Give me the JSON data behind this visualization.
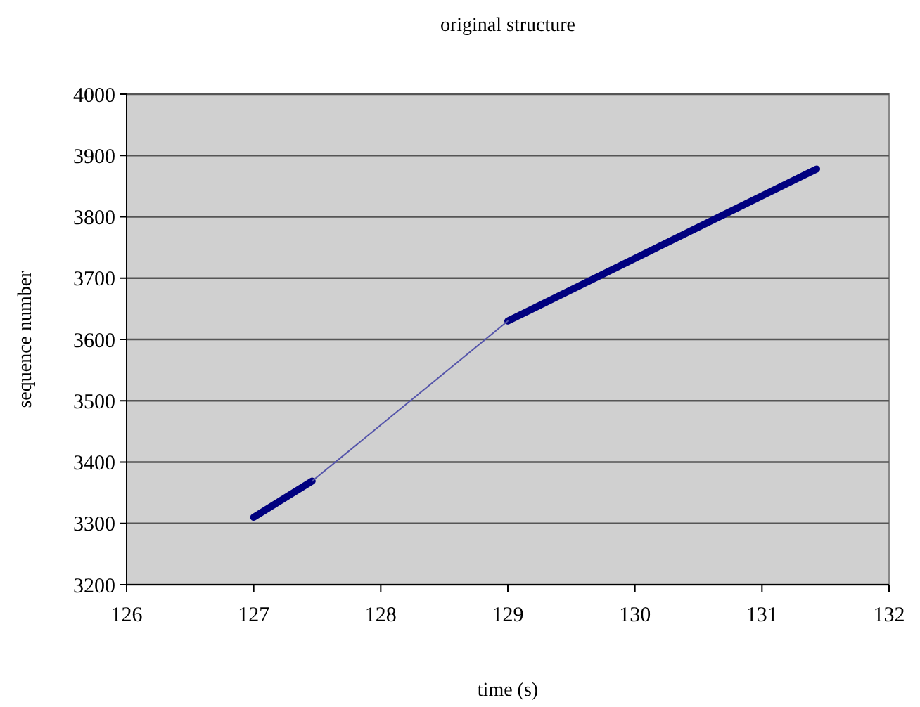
{
  "chart_data": {
    "type": "line",
    "title": "original structure",
    "xlabel": "time (s)",
    "ylabel": "sequence number",
    "series": [
      {
        "color": "#00007f",
        "x": [
          127,
          127.46,
          128.2,
          129,
          131.43
        ],
        "values": [
          3310,
          3369,
          null,
          3630,
          3878
        ]
      },
      {
        "color": "#5555aa",
        "x": [
          127.46,
          129
        ],
        "values": [
          3369,
          3630
        ]
      }
    ],
    "xlim": [
      126,
      132
    ],
    "xticks": [
      126,
      127,
      128,
      129,
      130,
      131,
      132
    ],
    "ylim": [
      3200,
      4000
    ],
    "yticks": [
      3200,
      3300,
      3400,
      3500,
      3600,
      3700,
      3800,
      3900,
      4000
    ],
    "grid": "y",
    "marker": "none",
    "line_style": "solid"
  }
}
